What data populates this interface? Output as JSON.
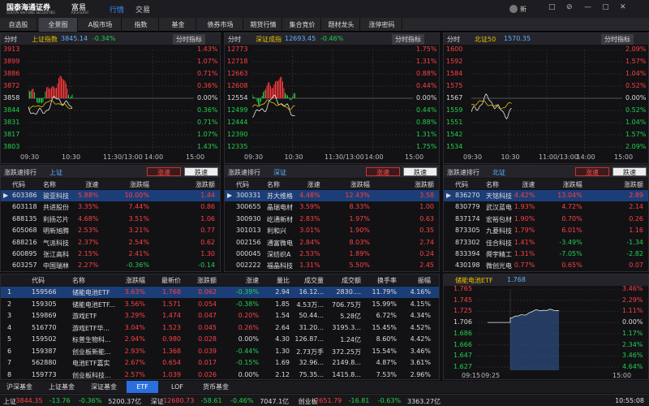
{
  "top_bar": {
    "logo": "国泰海通证券",
    "logo_en": "GUOTAI HAITONG SECURITIES",
    "logo_sub": "富易",
    "logo_sub_en": "RICH EASY",
    "tabs": [
      "行情",
      "交易"
    ],
    "user": "新"
  },
  "nav_tabs": [
    "自选股",
    "全景图",
    "A股市场",
    "指数",
    "基金",
    "债券市场",
    "期货行情",
    "集合竞价",
    "题材龙头",
    "涨停密码"
  ],
  "charts": [
    {
      "period": "分时",
      "name": "上证指数",
      "price": "3845.14",
      "change": "-0.34%",
      "indicator": "分时指标",
      "left_axis": [
        "3913",
        "3899",
        "3886",
        "3872",
        "3858",
        "3844",
        "3831",
        "3817",
        "3803"
      ],
      "right_axis": [
        "1.43%",
        "1.07%",
        "0.71%",
        "0.36%",
        "0.00%",
        "0.36%",
        "0.71%",
        "1.07%",
        "1.43%"
      ],
      "x_axis": [
        "09:30",
        "10:30",
        "11:30/13:00",
        "14:00",
        "15:00"
      ]
    },
    {
      "period": "分时",
      "name": "深证成指",
      "price": "12693.45",
      "change": "-0.46%",
      "indicator": "分时指标",
      "left_axis": [
        "12773",
        "12718",
        "12663",
        "12608",
        "12554",
        "12499",
        "12444",
        "12390",
        "12335"
      ],
      "right_axis": [
        "1.75%",
        "1.31%",
        "0.88%",
        "0.44%",
        "0.00%",
        "0.44%",
        "0.88%",
        "1.31%",
        "1.75%"
      ],
      "x_axis": [
        "09:30",
        "10:30",
        "11:30/13:00",
        "14:00",
        "15:00"
      ]
    },
    {
      "period": "分时",
      "name": "北证50",
      "price": "1570.35",
      "change": "",
      "indicator": "分时指标",
      "left_axis": [
        "1600",
        "1592",
        "1584",
        "1575",
        "1567",
        "1559",
        "1551",
        "1542",
        "1534"
      ],
      "right_axis": [
        "2.09%",
        "1.57%",
        "1.04%",
        "0.52%",
        "0.00%",
        "0.52%",
        "1.04%",
        "1.57%",
        "2.09%"
      ],
      "x_axis": [
        "09:30",
        "10:30",
        "11:00/13:00",
        "14:00",
        "15:00"
      ]
    }
  ],
  "rank_tables": [
    {
      "title": "涨跌速排行",
      "market": "上证",
      "buttons": [
        "涨速",
        "跌速"
      ],
      "columns": [
        "代码",
        "名称",
        "涨速",
        "涨跌幅",
        "涨跌额"
      ],
      "rows": [
        [
          "603386",
          "骏亚科技",
          "5.88%",
          "10.00%",
          "1.44"
        ],
        [
          "603118",
          "共进股份",
          "3.35%",
          "7.44%",
          "0.86"
        ],
        [
          "688135",
          "利扬芯片",
          "4.68%",
          "3.51%",
          "1.06"
        ],
        [
          "605068",
          "明新旭腾",
          "2.53%",
          "3.21%",
          "0.77"
        ],
        [
          "688216",
          "气派科技",
          "2.37%",
          "2.54%",
          "0.62"
        ],
        [
          "600895",
          "张江高科",
          "2.15%",
          "2.41%",
          "1.30"
        ],
        [
          "603257",
          "中国瑞林",
          "2.27%",
          "-0.36%",
          "-0.14"
        ]
      ]
    },
    {
      "title": "涨跌速排行",
      "market": "深证",
      "buttons": [
        "涨速",
        "跌速"
      ],
      "columns": [
        "代码",
        "名称",
        "涨速",
        "涨跌幅",
        "涨跌额"
      ],
      "rows": [
        [
          "300331",
          "苏大维格",
          "4.48%",
          "12.43%",
          "3.58"
        ],
        [
          "300655",
          "晶瑞电材",
          "3.59%",
          "8.33%",
          "1.00"
        ],
        [
          "300930",
          "屹通新材",
          "2.83%",
          "1.97%",
          "0.63"
        ],
        [
          "301013",
          "利和兴",
          "3.01%",
          "1.90%",
          "0.35"
        ],
        [
          "002156",
          "通富微电",
          "2.84%",
          "8.03%",
          "2.74"
        ],
        [
          "000045",
          "深纺织A",
          "2.53%",
          "1.89%",
          "0.24"
        ],
        [
          "002222",
          "福晶科技",
          "1.31%",
          "5.50%",
          "2.45"
        ]
      ]
    },
    {
      "title": "涨跌速排行",
      "market": "北证",
      "buttons": [
        "涨速",
        "跌速"
      ],
      "columns": [
        "代码",
        "名称",
        "涨速",
        "涨跌幅",
        "涨跌额"
      ],
      "rows": [
        [
          "836270",
          "天铭科技",
          "4.42%",
          "13.04%",
          "2.89"
        ],
        [
          "830779",
          "武汉蓝电",
          "1.93%",
          "4.72%",
          "2.14"
        ],
        [
          "837174",
          "宏裕包材",
          "1.90%",
          "0.70%",
          "0.26"
        ],
        [
          "873305",
          "九菱科技",
          "1.79%",
          "6.01%",
          "1.16"
        ],
        [
          "873302",
          "佳合科技",
          "1.41%",
          "-3.49%",
          "-1.34"
        ],
        [
          "833394",
          "舜宇精工",
          "1.31%",
          "-7.05%",
          "-2.82"
        ],
        [
          "430198",
          "微创光电",
          "0.77%",
          "0.65%",
          "0.07"
        ]
      ]
    }
  ],
  "fund_table": {
    "columns": [
      "代码",
      "名称",
      "涨跌幅",
      "最新价",
      "涨跌额",
      "涨速",
      "量比",
      "成交量",
      "成交额",
      "换手率",
      "振幅"
    ],
    "rows": [
      [
        "1",
        "159566",
        "储能电池ETF",
        "3.63%",
        "1.768",
        "0.062",
        "-0.39%",
        "2.94",
        "16.12...",
        "2830....",
        "11.79%",
        "4.16%"
      ],
      [
        "2",
        "159305",
        "储能电池ETF...",
        "3.56%",
        "1.571",
        "0.054",
        "-0.38%",
        "1.85",
        "4.53万...",
        "706.75万",
        "15.99%",
        "4.15%"
      ],
      [
        "3",
        "159869",
        "游戏ETF",
        "3.29%",
        "1.474",
        "0.047",
        "0.20%",
        "1.54",
        "50.44...",
        "5.28亿",
        "6.72%",
        "4.34%"
      ],
      [
        "4",
        "516770",
        "游戏ETF华...",
        "3.04%",
        "1.523",
        "0.045",
        "0.26%",
        "2.64",
        "31.20...",
        "3195.3...",
        "15.45%",
        "4.52%"
      ],
      [
        "5",
        "159502",
        "标普生物科...",
        "2.94%",
        "0.980",
        "0.028",
        "0.00%",
        "4.30",
        "126.87...",
        "1.24亿",
        "8.60%",
        "4.42%"
      ],
      [
        "6",
        "159387",
        "创业板新能...",
        "2.93%",
        "1.368",
        "0.039",
        "-0.44%",
        "1.30",
        "2.73万手",
        "372.25万",
        "15.54%",
        "3.46%"
      ],
      [
        "7",
        "562880",
        "电池ETF嘉实",
        "2.67%",
        "0.654",
        "0.017",
        "-0.15%",
        "1.69",
        "32.96...",
        "2149.8...",
        "4.87%",
        "3.61%"
      ],
      [
        "8",
        "159773",
        "创业板科技...",
        "2.57%",
        "1.039",
        "0.026",
        "0.00%",
        "2.12",
        "75.35...",
        "1415.8...",
        "7.53%",
        "2.96%"
      ]
    ]
  },
  "etf_chart": {
    "name": "储能电池ETF",
    "price": "1.768",
    "left_axis": [
      "1.765",
      "1.745",
      "1.725",
      "1.706",
      "1.686",
      "1.666",
      "1.647",
      "1.627"
    ],
    "right_axis": [
      "3.46%",
      "2.29%",
      "1.11%",
      "0.00%",
      "1.17%",
      "2.34%",
      "3.46%",
      "4.64%"
    ],
    "x_axis": [
      "09:15",
      "09:25",
      "15:00"
    ]
  },
  "fund_tabs": [
    "沪深基金",
    "上证基金",
    "深证基金",
    "ETF",
    "LOF",
    "货币基金"
  ],
  "status_bar": {
    "items": [
      {
        "name": "上证",
        "price": "3844.35",
        "change": "-13.76",
        "pct": "-0.36%",
        "amount": "5200.37亿"
      },
      {
        "name": "深证",
        "price": "12680.73",
        "change": "-58.61",
        "pct": "-0.46%",
        "amount": "7047.1亿"
      },
      {
        "name": "创业板",
        "price": "2651.79",
        "change": "-16.81",
        "pct": "-0.63%",
        "amount": "3363.27亿"
      }
    ],
    "time": "10:55:08"
  }
}
